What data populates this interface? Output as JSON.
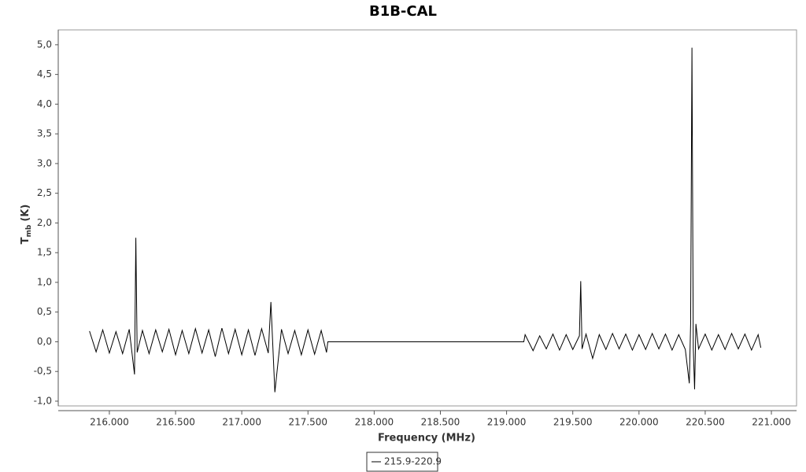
{
  "chart_data": {
    "type": "line",
    "title": "B1B-CAL",
    "xlabel": "Frequency (MHz)",
    "ylabel": "T",
    "ylabel_sub": "mb",
    "ylabel_unit": "(K)",
    "x": [
      215.85,
      215.9,
      215.95,
      216.0,
      216.05,
      216.1,
      216.15,
      216.19,
      216.2,
      216.21,
      216.25,
      216.3,
      216.35,
      216.4,
      216.45,
      216.5,
      216.55,
      216.6,
      216.65,
      216.7,
      216.75,
      216.8,
      216.85,
      216.9,
      216.95,
      217.0,
      217.05,
      217.1,
      217.15,
      217.2,
      217.22,
      217.25,
      217.3,
      217.35,
      217.4,
      217.45,
      217.5,
      217.55,
      217.6,
      217.64,
      217.65,
      219.13,
      219.14,
      219.2,
      219.25,
      219.3,
      219.35,
      219.4,
      219.45,
      219.5,
      219.55,
      219.56,
      219.57,
      219.6,
      219.65,
      219.7,
      219.75,
      219.8,
      219.85,
      219.9,
      219.95,
      220.0,
      220.05,
      220.1,
      220.15,
      220.2,
      220.25,
      220.3,
      220.35,
      220.38,
      220.39,
      220.4,
      220.41,
      220.42,
      220.43,
      220.45,
      220.5,
      220.55,
      220.6,
      220.65,
      220.7,
      220.75,
      220.8,
      220.85,
      220.9,
      220.92
    ],
    "series": [
      {
        "name": "215.9-220.9",
        "color": "#000000",
        "values": [
          0.18,
          -0.17,
          0.2,
          -0.19,
          0.17,
          -0.2,
          0.21,
          -0.55,
          1.75,
          -0.18,
          0.19,
          -0.2,
          0.2,
          -0.17,
          0.21,
          -0.22,
          0.19,
          -0.2,
          0.22,
          -0.19,
          0.2,
          -0.25,
          0.23,
          -0.2,
          0.21,
          -0.22,
          0.2,
          -0.23,
          0.22,
          -0.19,
          0.67,
          -0.85,
          0.21,
          -0.2,
          0.19,
          -0.22,
          0.2,
          -0.21,
          0.19,
          -0.18,
          0,
          0,
          0.12,
          -0.15,
          0.1,
          -0.12,
          0.13,
          -0.14,
          0.12,
          -0.13,
          0.1,
          1.02,
          -0.12,
          0.13,
          -0.28,
          0.12,
          -0.13,
          0.14,
          -0.12,
          0.13,
          -0.14,
          0.12,
          -0.13,
          0.14,
          -0.12,
          0.13,
          -0.14,
          0.12,
          -0.13,
          -0.7,
          0.3,
          4.95,
          -0.1,
          -0.8,
          0.3,
          -0.12,
          0.13,
          -0.14,
          0.12,
          -0.13,
          0.14,
          -0.12,
          0.13,
          -0.14,
          0.12,
          -0.1
        ]
      }
    ],
    "xlim": [
      215.614,
      221.19
    ],
    "ylim": [
      -1.08,
      5.25
    ],
    "xticks": [
      {
        "value": 216,
        "label": "216.000"
      },
      {
        "value": 216.5,
        "label": "216.500"
      },
      {
        "value": 217,
        "label": "217.000"
      },
      {
        "value": 217.5,
        "label": "217.500"
      },
      {
        "value": 218,
        "label": "218.000"
      },
      {
        "value": 218.5,
        "label": "218.500"
      },
      {
        "value": 219,
        "label": "219.000"
      },
      {
        "value": 219.5,
        "label": "219.500"
      },
      {
        "value": 220,
        "label": "220.000"
      },
      {
        "value": 220.5,
        "label": "220.500"
      },
      {
        "value": 221,
        "label": "221.000"
      }
    ],
    "yticks": [
      {
        "value": -1,
        "label": "-1,0"
      },
      {
        "value": -0.5,
        "label": "-0,5"
      },
      {
        "value": 0,
        "label": "0,0"
      },
      {
        "value": 0.5,
        "label": "0,5"
      },
      {
        "value": 1,
        "label": "1,0"
      },
      {
        "value": 1.5,
        "label": "1,5"
      },
      {
        "value": 2,
        "label": "2,0"
      },
      {
        "value": 2.5,
        "label": "2,5"
      },
      {
        "value": 3,
        "label": "3,0"
      },
      {
        "value": 3.5,
        "label": "3,5"
      },
      {
        "value": 4,
        "label": "4,0"
      },
      {
        "value": 4.5,
        "label": "4,5"
      },
      {
        "value": 5,
        "label": "5,0"
      }
    ],
    "grid": false
  }
}
